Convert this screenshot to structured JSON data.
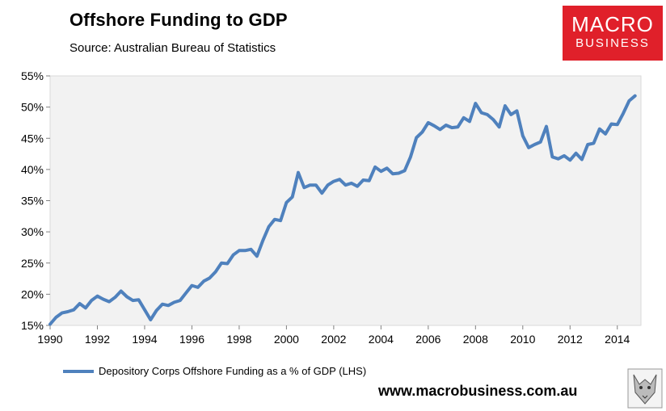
{
  "header": {
    "title": "Offshore Funding to GDP",
    "source": "Source:  Australian Bureau of Statistics"
  },
  "logo": {
    "line1": "MACRO",
    "line2": "BUSINESS",
    "bg_color": "#e0202a"
  },
  "footer": {
    "website": "www.macrobusiness.com.au"
  },
  "chart_data": {
    "type": "line",
    "title": "Offshore Funding to GDP",
    "xlabel": "",
    "ylabel": "",
    "xlim": [
      1990,
      2015
    ],
    "ylim": [
      15,
      55
    ],
    "xticks": [
      1990,
      1992,
      1994,
      1996,
      1998,
      2000,
      2002,
      2004,
      2006,
      2008,
      2010,
      2012,
      2014
    ],
    "xtick_labels": [
      "1990",
      "1992",
      "1994",
      "1996",
      "1998",
      "2000",
      "2002",
      "2004",
      "2006",
      "2008",
      "2010",
      "2012",
      "2014"
    ],
    "yticks": [
      15,
      20,
      25,
      30,
      35,
      40,
      45,
      50,
      55
    ],
    "ytick_labels": [
      "15%",
      "20%",
      "25%",
      "30%",
      "35%",
      "40%",
      "45%",
      "50%",
      "55%"
    ],
    "grid": false,
    "legend_position": "bottom-left",
    "series": [
      {
        "name": "Depository Corps Offshore Funding as a % of GDP (LHS)",
        "color": "#4f81bd",
        "points": [
          [
            1990.0,
            15.2
          ],
          [
            1990.25,
            16.3
          ],
          [
            1990.5,
            17.0
          ],
          [
            1990.75,
            17.2
          ],
          [
            1991.0,
            17.5
          ],
          [
            1991.25,
            18.5
          ],
          [
            1991.5,
            17.8
          ],
          [
            1991.75,
            19.0
          ],
          [
            1992.0,
            19.7
          ],
          [
            1992.25,
            19.2
          ],
          [
            1992.5,
            18.8
          ],
          [
            1992.75,
            19.5
          ],
          [
            1993.0,
            20.5
          ],
          [
            1993.25,
            19.6
          ],
          [
            1993.5,
            19.0
          ],
          [
            1993.75,
            19.1
          ],
          [
            1994.0,
            17.5
          ],
          [
            1994.25,
            15.9
          ],
          [
            1994.5,
            17.4
          ],
          [
            1994.75,
            18.4
          ],
          [
            1995.0,
            18.2
          ],
          [
            1995.25,
            18.7
          ],
          [
            1995.5,
            19.0
          ],
          [
            1995.75,
            20.2
          ],
          [
            1996.0,
            21.4
          ],
          [
            1996.25,
            21.1
          ],
          [
            1996.5,
            22.1
          ],
          [
            1996.75,
            22.6
          ],
          [
            1997.0,
            23.6
          ],
          [
            1997.25,
            25.0
          ],
          [
            1997.5,
            24.9
          ],
          [
            1997.75,
            26.3
          ],
          [
            1998.0,
            27.0
          ],
          [
            1998.25,
            27.0
          ],
          [
            1998.5,
            27.2
          ],
          [
            1998.75,
            26.1
          ],
          [
            1999.0,
            28.6
          ],
          [
            1999.25,
            30.8
          ],
          [
            1999.5,
            32.0
          ],
          [
            1999.75,
            31.8
          ],
          [
            2000.0,
            34.7
          ],
          [
            2000.25,
            35.6
          ],
          [
            2000.5,
            39.5
          ],
          [
            2000.75,
            37.1
          ],
          [
            2001.0,
            37.5
          ],
          [
            2001.25,
            37.5
          ],
          [
            2001.5,
            36.2
          ],
          [
            2001.75,
            37.5
          ],
          [
            2002.0,
            38.1
          ],
          [
            2002.25,
            38.4
          ],
          [
            2002.5,
            37.5
          ],
          [
            2002.75,
            37.8
          ],
          [
            2003.0,
            37.3
          ],
          [
            2003.25,
            38.3
          ],
          [
            2003.5,
            38.2
          ],
          [
            2003.75,
            40.4
          ],
          [
            2004.0,
            39.7
          ],
          [
            2004.25,
            40.2
          ],
          [
            2004.5,
            39.3
          ],
          [
            2004.75,
            39.4
          ],
          [
            2005.0,
            39.8
          ],
          [
            2005.25,
            42.0
          ],
          [
            2005.5,
            45.1
          ],
          [
            2005.75,
            46.0
          ],
          [
            2006.0,
            47.5
          ],
          [
            2006.25,
            47.0
          ],
          [
            2006.5,
            46.4
          ],
          [
            2006.75,
            47.1
          ],
          [
            2007.0,
            46.7
          ],
          [
            2007.25,
            46.8
          ],
          [
            2007.5,
            48.3
          ],
          [
            2007.75,
            47.7
          ],
          [
            2008.0,
            50.6
          ],
          [
            2008.25,
            49.1
          ],
          [
            2008.5,
            48.8
          ],
          [
            2008.75,
            48.0
          ],
          [
            2009.0,
            46.8
          ],
          [
            2009.25,
            50.2
          ],
          [
            2009.5,
            48.8
          ],
          [
            2009.75,
            49.4
          ],
          [
            2010.0,
            45.4
          ],
          [
            2010.25,
            43.5
          ],
          [
            2010.5,
            44.0
          ],
          [
            2010.75,
            44.4
          ],
          [
            2011.0,
            46.9
          ],
          [
            2011.25,
            42.0
          ],
          [
            2011.5,
            41.7
          ],
          [
            2011.75,
            42.2
          ],
          [
            2012.0,
            41.5
          ],
          [
            2012.25,
            42.6
          ],
          [
            2012.5,
            41.6
          ],
          [
            2012.75,
            44.0
          ],
          [
            2013.0,
            44.2
          ],
          [
            2013.25,
            46.5
          ],
          [
            2013.5,
            45.7
          ],
          [
            2013.75,
            47.3
          ],
          [
            2014.0,
            47.2
          ],
          [
            2014.25,
            49.0
          ],
          [
            2014.5,
            51.0
          ],
          [
            2014.75,
            51.8
          ]
        ]
      }
    ]
  }
}
